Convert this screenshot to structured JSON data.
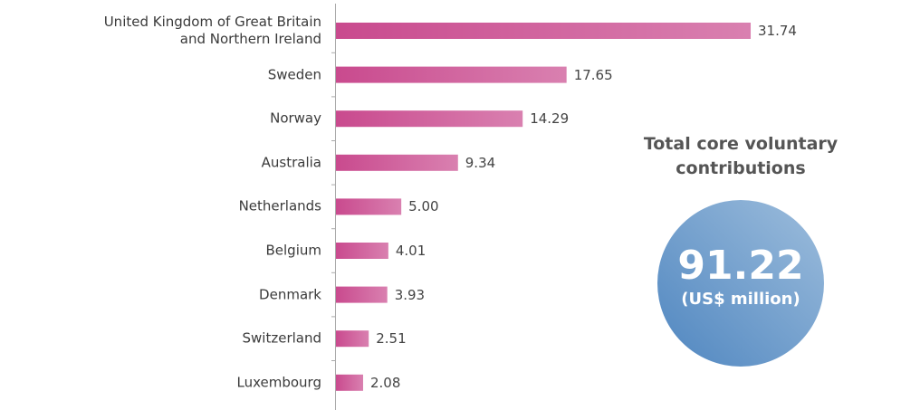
{
  "chart_data": {
    "type": "bar",
    "orientation": "horizontal",
    "categories": [
      "United Kingdom of Great Britain and Northern Ireland",
      "Sweden",
      "Norway",
      "Australia",
      "Netherlands",
      "Belgium",
      "Denmark",
      "Switzerland",
      "Luxembourg"
    ],
    "values": [
      31.74,
      17.65,
      14.29,
      9.34,
      5.0,
      4.01,
      3.93,
      2.51,
      2.08
    ],
    "value_labels": [
      "31.74",
      "17.65",
      "14.29",
      "9.34",
      "5.00",
      "4.01",
      "3.93",
      "2.51",
      "2.08"
    ],
    "color": "#c94a8e"
  },
  "summary": {
    "title": "Total core voluntary contributions",
    "value": 91.22,
    "unit": "(US$ million)"
  }
}
